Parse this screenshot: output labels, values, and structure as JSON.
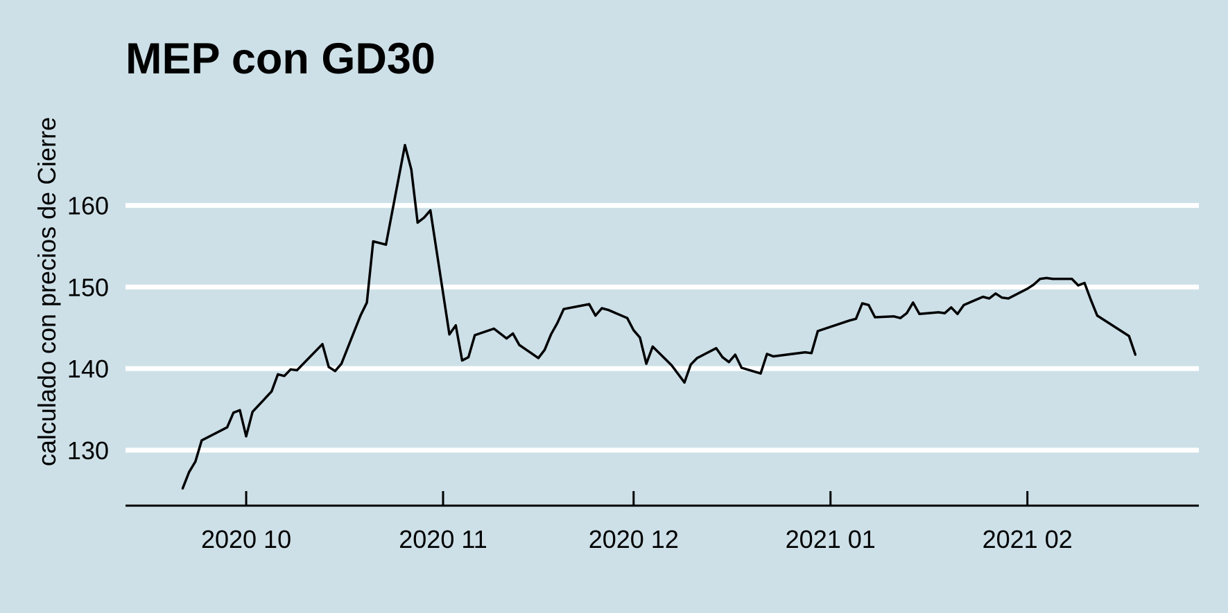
{
  "chart_data": {
    "type": "line",
    "title": "MEP con GD30",
    "xlabel": "",
    "ylabel": "calculado con precios de Cierre",
    "x_type": "date",
    "xlim": [
      "2020-09-12",
      "2021-02-28"
    ],
    "ylim": [
      123.2,
      175
    ],
    "yticks": [
      130,
      140,
      150,
      160
    ],
    "ytick_labels": [
      "130",
      "140",
      "150",
      "160"
    ],
    "xticks": [
      "2020-10-01",
      "2020-11-01",
      "2020-12-01",
      "2021-01-01",
      "2021-02-01"
    ],
    "xtick_labels": [
      "2020 10",
      "2020 11",
      "2020 12",
      "2021 01",
      "2021 02"
    ],
    "grid": "horizontal-major",
    "legend": "none",
    "colors": {
      "background": "#cde0e8",
      "grid": "#ffffff",
      "line": "#000000",
      "axis": "#000000",
      "text": "#000000"
    },
    "series": [
      {
        "x": [
          "2020-09-21",
          "2020-09-22",
          "2020-09-23",
          "2020-09-24",
          "2020-09-28",
          "2020-09-29",
          "2020-09-30",
          "2020-10-01",
          "2020-10-02",
          "2020-10-05",
          "2020-10-06",
          "2020-10-07",
          "2020-10-08",
          "2020-10-09",
          "2020-10-13",
          "2020-10-14",
          "2020-10-15",
          "2020-10-16",
          "2020-10-19",
          "2020-10-20",
          "2020-10-21",
          "2020-10-22",
          "2020-10-23",
          "2020-10-26",
          "2020-10-27",
          "2020-10-28",
          "2020-10-29",
          "2020-10-30",
          "2020-11-02",
          "2020-11-03",
          "2020-11-04",
          "2020-11-05",
          "2020-11-06",
          "2020-11-09",
          "2020-11-10",
          "2020-11-11",
          "2020-11-12",
          "2020-11-13",
          "2020-11-16",
          "2020-11-17",
          "2020-11-18",
          "2020-11-19",
          "2020-11-20",
          "2020-11-24",
          "2020-11-25",
          "2020-11-26",
          "2020-11-27",
          "2020-11-30",
          "2020-12-01",
          "2020-12-02",
          "2020-12-03",
          "2020-12-04",
          "2020-12-07",
          "2020-12-09",
          "2020-12-10",
          "2020-12-11",
          "2020-12-14",
          "2020-12-15",
          "2020-12-16",
          "2020-12-17",
          "2020-12-18",
          "2020-12-21",
          "2020-12-22",
          "2020-12-23",
          "2020-12-28",
          "2020-12-29",
          "2020-12-30",
          "2021-01-04",
          "2021-01-05",
          "2021-01-06",
          "2021-01-07",
          "2021-01-08",
          "2021-01-11",
          "2021-01-12",
          "2021-01-13",
          "2021-01-14",
          "2021-01-15",
          "2021-01-18",
          "2021-01-19",
          "2021-01-20",
          "2021-01-21",
          "2021-01-22",
          "2021-01-25",
          "2021-01-26",
          "2021-01-27",
          "2021-01-28",
          "2021-01-29",
          "2021-02-01",
          "2021-02-02",
          "2021-02-03",
          "2021-02-04",
          "2021-02-05",
          "2021-02-08",
          "2021-02-09",
          "2021-02-10",
          "2021-02-11",
          "2021-02-12",
          "2021-02-17",
          "2021-02-18"
        ],
        "values": [
          125.3,
          127.3,
          128.6,
          131.2,
          132.8,
          134.6,
          134.9,
          131.7,
          134.7,
          137.2,
          139.3,
          139.1,
          139.9,
          139.8,
          143.0,
          140.2,
          139.7,
          140.6,
          146.5,
          148.1,
          155.6,
          155.4,
          155.2,
          167.4,
          164.4,
          157.9,
          158.5,
          159.4,
          144.2,
          145.3,
          141.0,
          141.4,
          144.1,
          144.9,
          144.3,
          143.7,
          144.3,
          142.9,
          141.3,
          142.3,
          144.2,
          145.6,
          147.3,
          147.9,
          146.5,
          147.4,
          147.2,
          146.2,
          144.7,
          143.8,
          140.6,
          142.7,
          140.4,
          138.3,
          140.5,
          141.3,
          142.5,
          141.4,
          140.8,
          141.7,
          140.1,
          139.4,
          141.8,
          141.5,
          142.0,
          141.9,
          144.6,
          145.9,
          146.1,
          148.0,
          147.8,
          146.3,
          146.4,
          146.2,
          146.8,
          148.1,
          146.7,
          146.9,
          146.8,
          147.5,
          146.7,
          147.8,
          148.8,
          148.6,
          149.2,
          148.7,
          148.6,
          149.8,
          150.3,
          151.0,
          151.1,
          151.0,
          151.0,
          150.2,
          150.5,
          148.4,
          146.5,
          144.0,
          141.7
        ]
      }
    ]
  }
}
